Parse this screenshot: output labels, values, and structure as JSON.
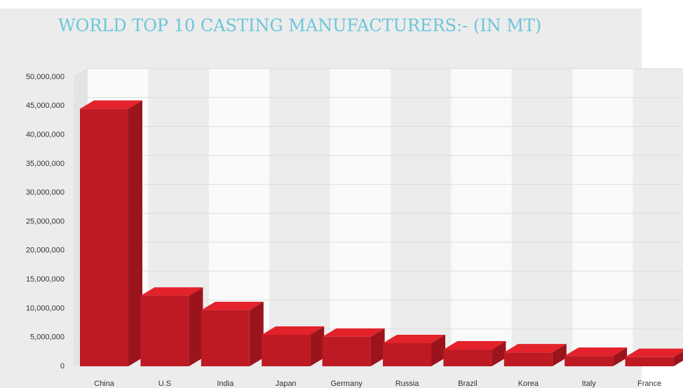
{
  "chart_data": {
    "type": "bar3d",
    "title": "WORLD TOP 10 CASTING MANUFACTURERS:- (IN MT)",
    "categories": [
      "China",
      "U.S",
      "India",
      "Japan",
      "Germany",
      "Russia",
      "Brazil",
      "Korea",
      "Italy",
      "France"
    ],
    "values": [
      44500000,
      12200000,
      9700000,
      5450000,
      5100000,
      4000000,
      2900000,
      2400000,
      1800000,
      1600000
    ],
    "color": "#be1a24",
    "ylim": [
      0,
      50000000
    ],
    "yticks": [
      0,
      {
        "value": 5000000,
        "label": "5,000,000"
      },
      {
        "value": 10000000,
        "label": "10,000,000"
      },
      {
        "value": 15000000,
        "label": "15,000,000"
      },
      {
        "value": 20000000,
        "label": "20,000,000"
      },
      {
        "value": 25000000,
        "label": "25,000,000"
      },
      {
        "value": 30000000,
        "label": "30,000,000"
      },
      {
        "value": 35000000,
        "label": "35,000,000"
      },
      {
        "value": 40000000,
        "label": "40,000,000"
      },
      {
        "value": 45000000,
        "label": "45,000,000"
      },
      {
        "value": 50000000,
        "label": "50,000,000"
      }
    ],
    "grid": true
  }
}
